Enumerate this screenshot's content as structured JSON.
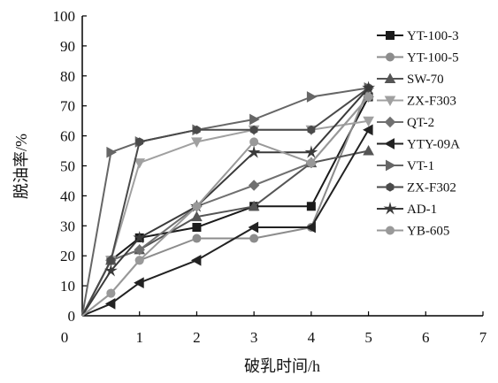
{
  "chart_data": {
    "type": "line",
    "xlabel": "破乳时间/h",
    "ylabel": "脱油率/%",
    "xlim": [
      0,
      7
    ],
    "ylim": [
      0,
      100
    ],
    "xticks": [
      "0",
      "1",
      "2",
      "3",
      "4",
      "5",
      "6",
      "7"
    ],
    "yticks": [
      "0",
      "10",
      "20",
      "30",
      "40",
      "50",
      "60",
      "70",
      "80",
      "90",
      "100"
    ],
    "grid": false,
    "legend_position": "right",
    "x": [
      0,
      0.5,
      1,
      2,
      3,
      4,
      5
    ],
    "series": [
      {
        "name": "YT-100-3",
        "color": "#1a1a1a",
        "marker": "square",
        "values": [
          0,
          18.5,
          26,
          29.5,
          36.5,
          36.5,
          73
        ]
      },
      {
        "name": "YT-100-5",
        "color": "#8c8c8c",
        "marker": "circle",
        "values": [
          0,
          7.5,
          18.5,
          25.8,
          25.8,
          29.5,
          76
        ]
      },
      {
        "name": "SW-70",
        "color": "#555555",
        "marker": "triangle-up",
        "values": [
          0,
          18.5,
          22,
          33,
          36.5,
          51,
          55
        ]
      },
      {
        "name": "ZX-F303",
        "color": "#a0a0a0",
        "marker": "triangle-down",
        "values": [
          0,
          18.5,
          51,
          58,
          62,
          62,
          65
        ]
      },
      {
        "name": "QT-2",
        "color": "#707070",
        "marker": "diamond",
        "values": [
          0,
          18.5,
          22,
          36.5,
          43.5,
          51,
          73
        ]
      },
      {
        "name": "YTY-09A",
        "color": "#222222",
        "marker": "triangle-left",
        "values": [
          0,
          4,
          11,
          18.5,
          29.5,
          29.5,
          62
        ]
      },
      {
        "name": "VT-1",
        "color": "#666666",
        "marker": "triangle-right",
        "values": [
          0,
          54.5,
          58,
          62,
          65.5,
          73,
          76
        ]
      },
      {
        "name": "ZX-F302",
        "color": "#4a4a4a",
        "marker": "hexagon",
        "values": [
          0,
          18.5,
          58,
          62,
          62,
          62,
          76
        ]
      },
      {
        "name": "AD-1",
        "color": "#3a3a3a",
        "marker": "star",
        "values": [
          0,
          15,
          26,
          36.5,
          54.5,
          54.5,
          76
        ]
      },
      {
        "name": "YB-605",
        "color": "#999999",
        "marker": "circle",
        "values": [
          0,
          7.5,
          18.5,
          36.5,
          58,
          51,
          73
        ]
      }
    ]
  }
}
